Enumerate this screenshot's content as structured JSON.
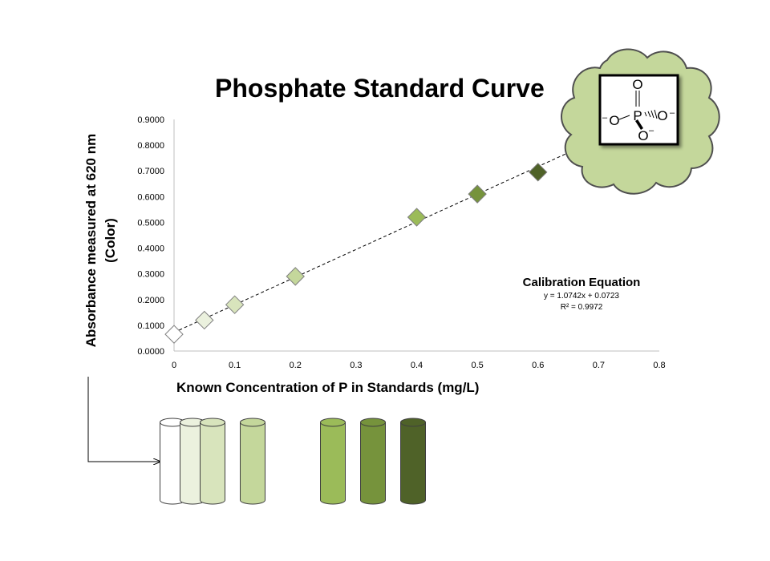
{
  "chart_data": {
    "type": "scatter",
    "title": "Phosphate Standard Curve",
    "ylabel_lines": [
      "Absorbance  measured  at 620 nm",
      "(Color)"
    ],
    "xlabel": "Known Concentration  of P in Standards  (mg/L)",
    "xlim": [
      0,
      0.8
    ],
    "ylim": [
      0,
      0.9
    ],
    "x_ticks": [
      "0",
      "0.1",
      "0.2",
      "0.3",
      "0.4",
      "0.5",
      "0.6",
      "0.7",
      "0.8"
    ],
    "y_ticks": [
      "0.0000",
      "0.1000",
      "0.2000",
      "0.3000",
      "0.4000",
      "0.5000",
      "0.6000",
      "0.7000",
      "0.8000",
      "0.9000"
    ],
    "grid": false,
    "marker": "diamond",
    "points": [
      {
        "x": 0,
        "y": 0.065,
        "color": "#ffffff"
      },
      {
        "x": 0.05,
        "y": 0.12,
        "color": "#ebf1de"
      },
      {
        "x": 0.1,
        "y": 0.18,
        "color": "#d8e4bc"
      },
      {
        "x": 0.2,
        "y": 0.29,
        "color": "#c4d79b"
      },
      {
        "x": 0.4,
        "y": 0.52,
        "color": "#9bbb59"
      },
      {
        "x": 0.5,
        "y": 0.61,
        "color": "#76933c"
      },
      {
        "x": 0.6,
        "y": 0.695,
        "color": "#4f6228"
      }
    ],
    "trendline": {
      "slope": 1.0742,
      "intercept": 0.0723,
      "style": "dashed"
    },
    "equation_title": "Calibration Equation",
    "equation": "y = 1.0742x + 0.0723",
    "r_squared": "R² = 0.9972"
  },
  "tubes": [
    {
      "x": 0,
      "color": "#ffffff"
    },
    {
      "x": 0.05,
      "color": "#ebf1de"
    },
    {
      "x": 0.1,
      "color": "#d8e4bc"
    },
    {
      "x": 0.2,
      "color": "#c4d79b"
    },
    {
      "x": 0.4,
      "color": "#9bbb59"
    },
    {
      "x": 0.5,
      "color": "#76933c"
    },
    {
      "x": 0.6,
      "color": "#4f6228"
    }
  ],
  "molecule": {
    "atoms": [
      "O",
      "P",
      "O",
      "O",
      "O"
    ],
    "charges": [
      "–",
      "–",
      "–"
    ]
  },
  "colors": {
    "cloud": "#c4d79b",
    "cloud_stroke": "#4f4f4f"
  }
}
